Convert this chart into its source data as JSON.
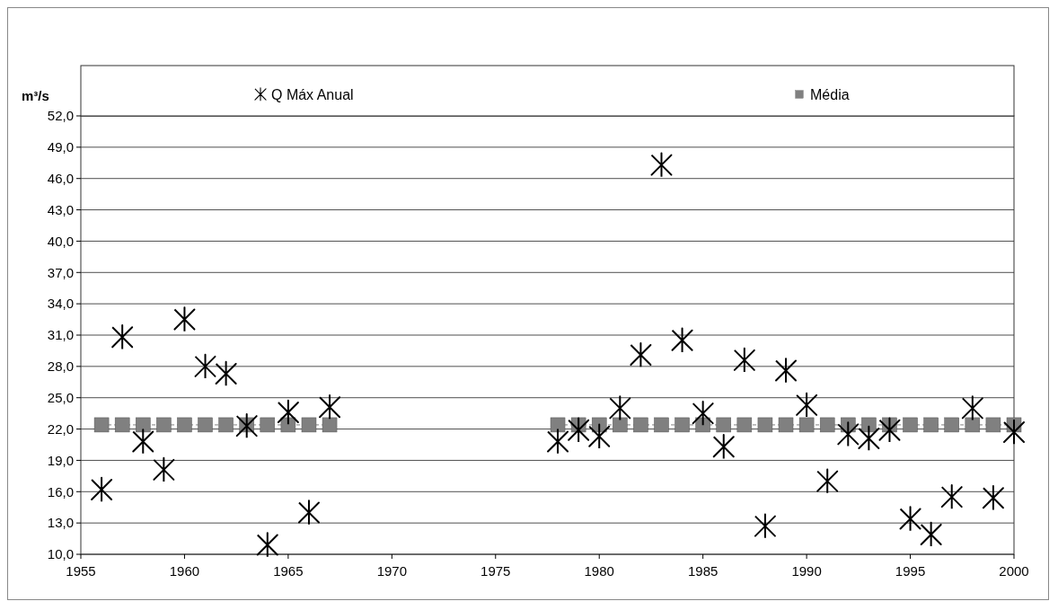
{
  "chart_data": {
    "type": "scatter",
    "ylabel": "m³/s",
    "legend": "top",
    "grid": "y",
    "x": [
      1956,
      1957,
      1958,
      1959,
      1960,
      1961,
      1962,
      1963,
      1964,
      1965,
      1966,
      1967,
      1968,
      1969,
      1970,
      1971,
      1972,
      1973,
      1974,
      1975,
      1976,
      1977,
      1978,
      1979,
      1980,
      1981,
      1982,
      1983,
      1984,
      1985,
      1986,
      1987,
      1988,
      1989,
      1990,
      1991,
      1992,
      1993,
      1994,
      1995,
      1996,
      1997,
      1998,
      1999,
      2000
    ],
    "series": [
      {
        "name": "Q Máx Anual",
        "color": "#000000",
        "marker": "cross",
        "values": [
          16.2,
          30.8,
          20.8,
          18.1,
          32.5,
          28.0,
          27.3,
          22.3,
          10.9,
          23.6,
          14.0,
          24.1,
          null,
          null,
          null,
          null,
          null,
          null,
          null,
          null,
          null,
          null,
          20.8,
          21.9,
          21.3,
          24.0,
          29.1,
          47.3,
          30.5,
          23.5,
          20.3,
          28.6,
          12.7,
          27.6,
          24.3,
          17.0,
          21.5,
          21.1,
          21.9,
          13.4,
          11.9,
          15.5,
          24.0,
          15.4,
          21.7
        ]
      },
      {
        "name": "Média",
        "color": "#808080",
        "type": "line",
        "marker": "square",
        "line_style": "dashed",
        "values": [
          22.4,
          22.4,
          22.4,
          22.4,
          22.4,
          22.4,
          22.4,
          22.4,
          22.4,
          22.4,
          22.4,
          22.4,
          null,
          null,
          null,
          null,
          null,
          null,
          null,
          null,
          null,
          null,
          22.4,
          22.4,
          22.4,
          22.4,
          22.4,
          22.4,
          22.4,
          22.4,
          22.4,
          22.4,
          22.4,
          22.4,
          22.4,
          22.4,
          22.4,
          22.4,
          22.4,
          22.4,
          22.4,
          22.4,
          22.4,
          22.4,
          22.4
        ]
      }
    ],
    "xlim": [
      1955,
      2000
    ],
    "xticks": [
      1955,
      1960,
      1965,
      1970,
      1975,
      1980,
      1985,
      1990,
      1995,
      2000
    ],
    "ylim": [
      10,
      52
    ],
    "yticks": [
      {
        "value": 10,
        "label": "10,0"
      },
      {
        "value": 13,
        "label": "13,0"
      },
      {
        "value": 16,
        "label": "16,0"
      },
      {
        "value": 19,
        "label": "19,0"
      },
      {
        "value": 22,
        "label": "22,0"
      },
      {
        "value": 25,
        "label": "25,0"
      },
      {
        "value": 28,
        "label": "28,0"
      },
      {
        "value": 31,
        "label": "31,0"
      },
      {
        "value": 34,
        "label": "34,0"
      },
      {
        "value": 37,
        "label": "37,0"
      },
      {
        "value": 40,
        "label": "40,0"
      },
      {
        "value": 43,
        "label": "43,0"
      },
      {
        "value": 46,
        "label": "46,0"
      },
      {
        "value": 49,
        "label": "49,0"
      },
      {
        "value": 52,
        "label": "52,0"
      }
    ]
  }
}
